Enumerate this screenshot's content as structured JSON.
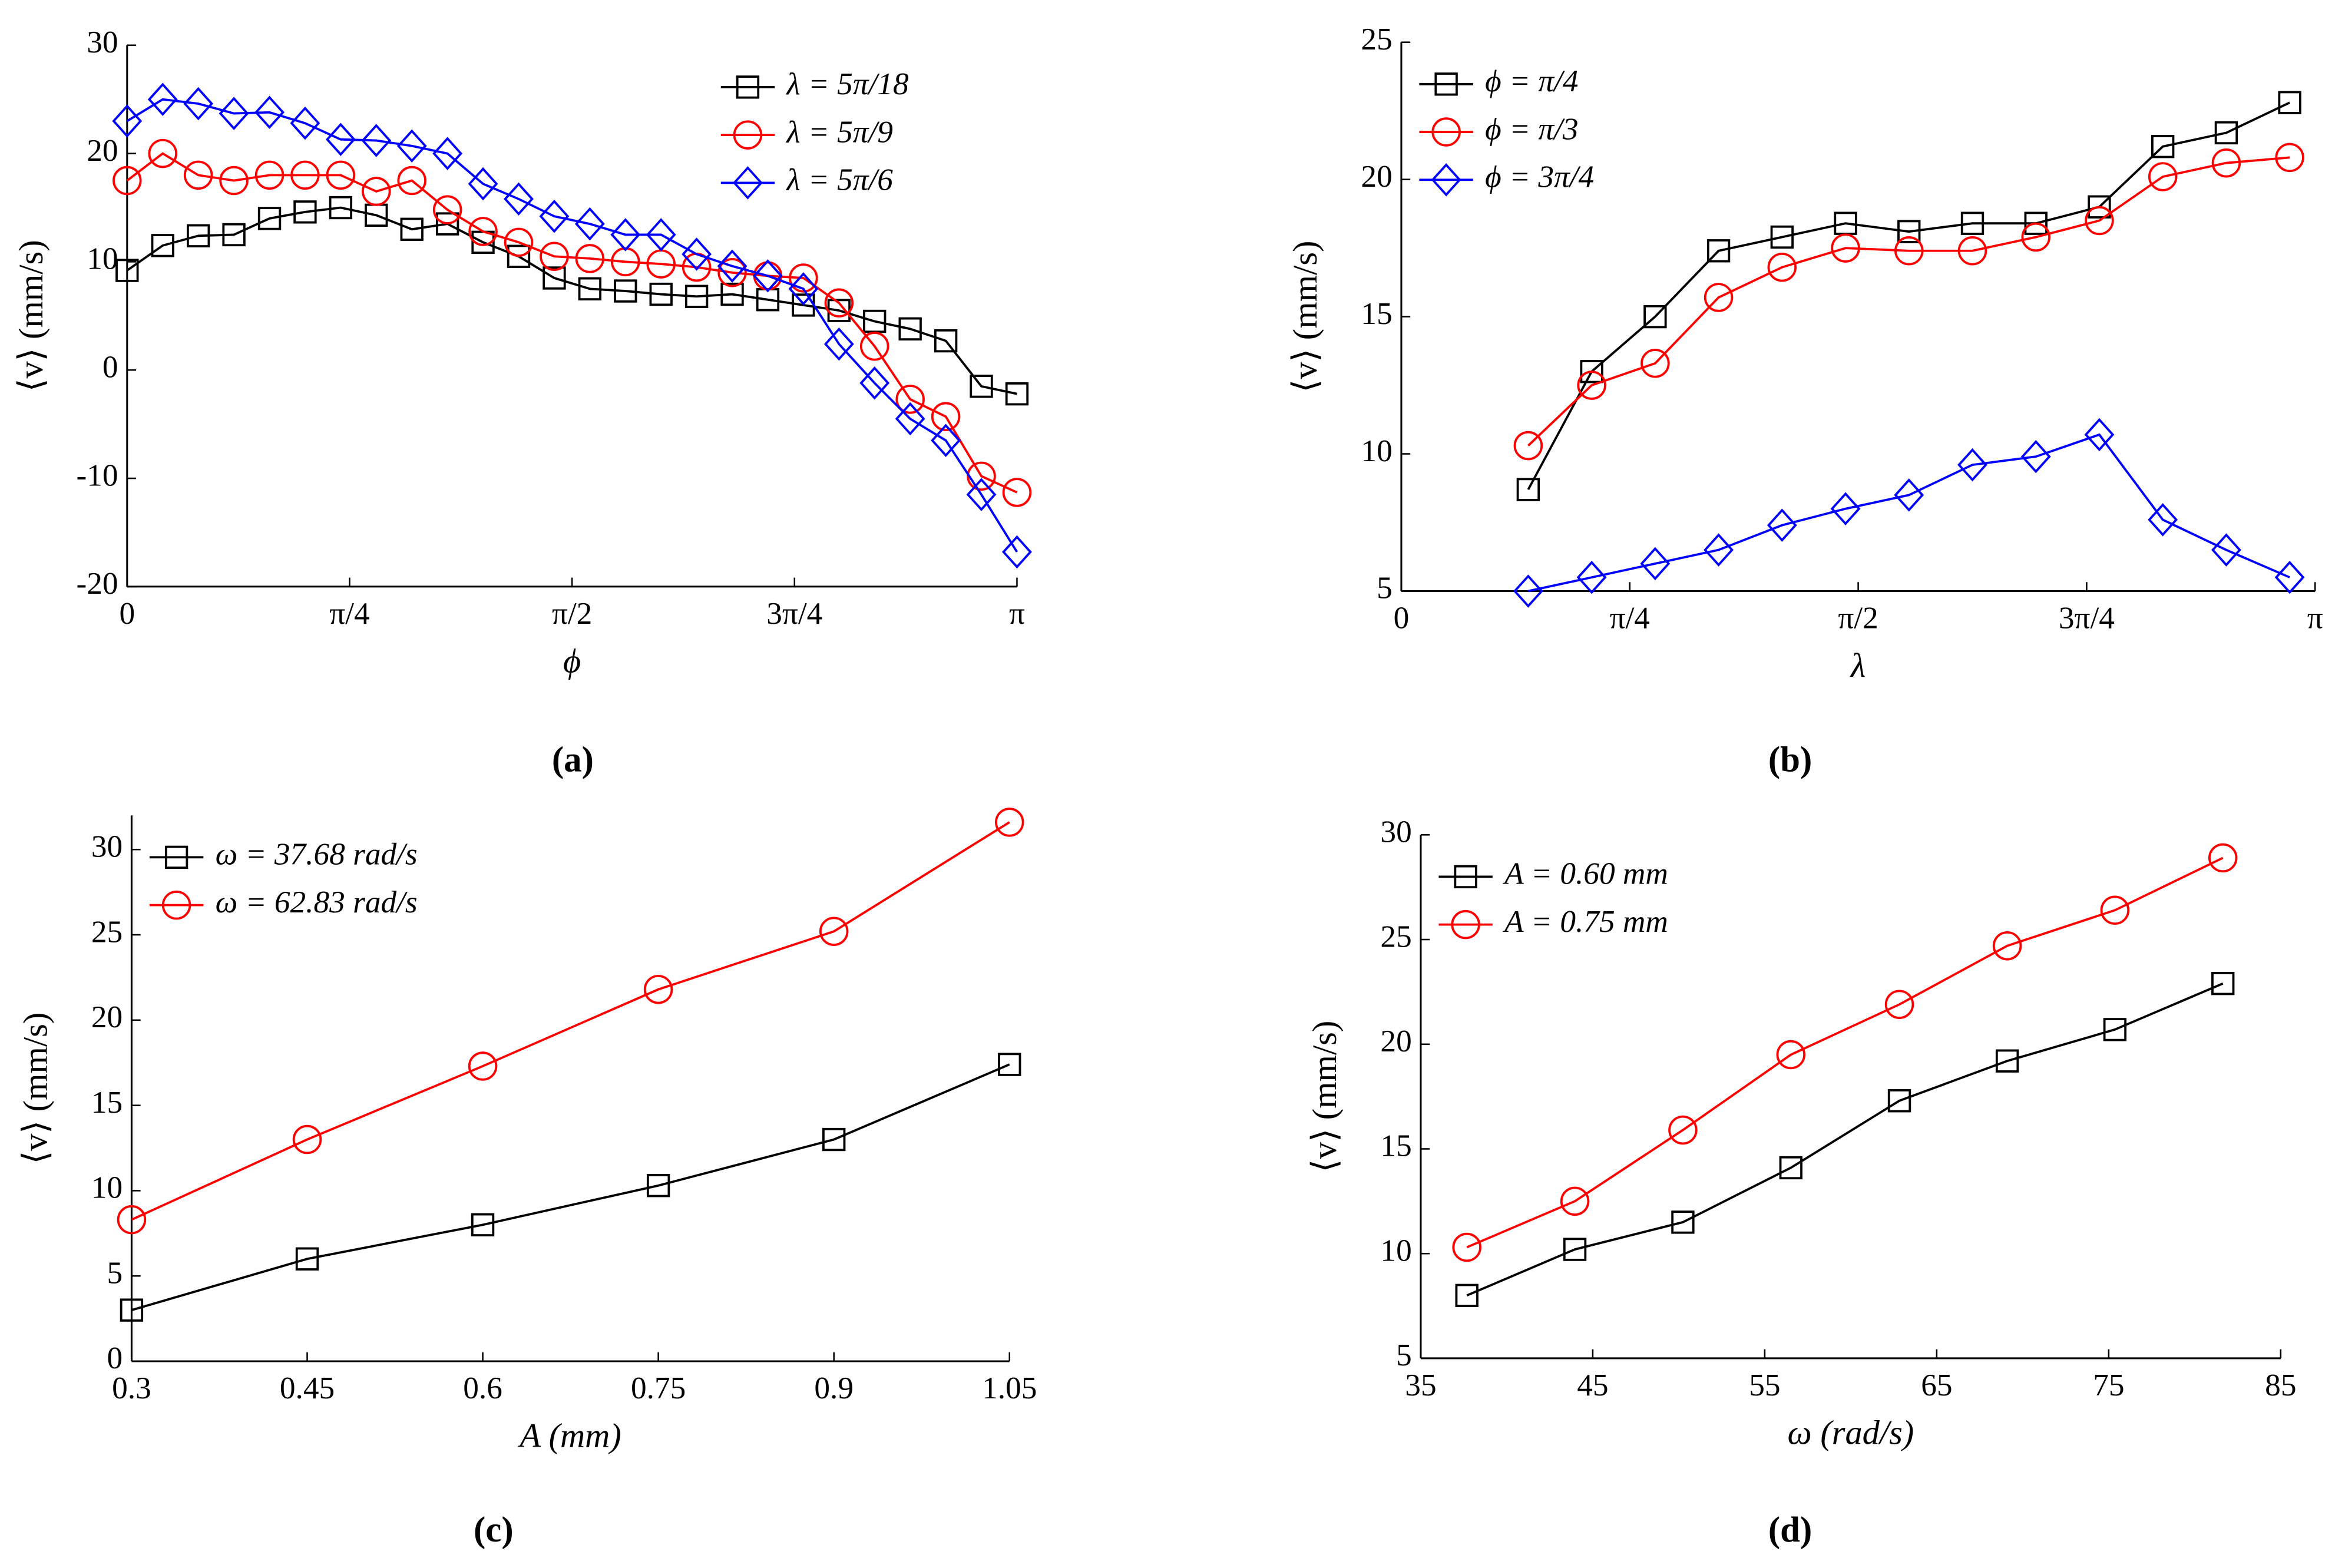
{
  "chart_data": [
    {
      "type": "line",
      "label": "(a)",
      "x_label": "ϕ",
      "y_label": "⟨v⟩ (mm/s)",
      "legend": "upper right",
      "x": [
        0,
        0.1257,
        0.2513,
        0.377,
        0.5027,
        0.6283,
        0.754,
        0.8796,
        1.0053,
        1.131,
        1.2566,
        1.3823,
        1.508,
        1.6336,
        1.7593,
        1.885,
        2.0106,
        2.1363,
        2.2619,
        2.3876,
        2.5133,
        2.6389,
        2.7646,
        2.8903,
        3.0159,
        3.1416
      ],
      "xlim": [
        0,
        3.1416
      ],
      "xticks": [
        0,
        {
          "value": 0.7854,
          "label": "π/4"
        },
        {
          "value": 1.5708,
          "label": "π/2"
        },
        {
          "value": 2.3562,
          "label": "3π/4"
        },
        {
          "value": 3.1416,
          "label": "π"
        }
      ],
      "ylim": [
        -20,
        30
      ],
      "yticks": [
        -20,
        -10,
        0,
        10,
        20,
        30
      ],
      "series": [
        {
          "name": "λ = 5π/18",
          "color": "#000000",
          "marker": "square",
          "values": [
            9.2,
            11.5,
            12.4,
            12.5,
            14,
            14.6,
            15,
            14.3,
            13,
            13.5,
            11.8,
            10.5,
            8.5,
            7.5,
            7.3,
            7,
            6.8,
            7,
            6.5,
            6,
            5.5,
            4.5,
            3.8,
            2.7,
            -1.5,
            -2.2
          ]
        },
        {
          "name": "λ = 5π/9",
          "color": "#ff0000",
          "marker": "circle",
          "values": [
            17.5,
            20,
            18,
            17.5,
            18,
            18,
            18,
            16.5,
            17.5,
            14.8,
            12.8,
            11.8,
            10.5,
            10.3,
            10,
            9.8,
            9.5,
            9,
            8.7,
            8.5,
            6.2,
            2.2,
            -2.7,
            -4.3,
            -9.8,
            -11.3
          ]
        },
        {
          "name": "λ = 5π/6",
          "color": "#0000ff",
          "marker": "diamond",
          "values": [
            23,
            25,
            24.6,
            23.7,
            23.8,
            22.8,
            21.3,
            21.2,
            20.7,
            20,
            17.2,
            15.8,
            14.2,
            13.5,
            12.5,
            12.5,
            10.7,
            9.6,
            8.7,
            7.5,
            2.4,
            -1.2,
            -4.5,
            -6.5,
            -11.5,
            -16.8
          ]
        }
      ]
    },
    {
      "type": "line",
      "label": "(b)",
      "x_label": "λ",
      "y_label": "⟨v⟩ (mm/s)",
      "legend": "upper left",
      "x": [
        0.4363,
        0.6545,
        0.8727,
        1.0908,
        1.309,
        1.5272,
        1.7453,
        1.9635,
        2.1817,
        2.3998,
        2.618,
        2.8362,
        3.0543
      ],
      "xlim": [
        0,
        3.1416
      ],
      "xticks": [
        0,
        {
          "value": 0.7854,
          "label": "π/4"
        },
        {
          "value": 1.5708,
          "label": "π/2"
        },
        {
          "value": 2.3562,
          "label": "3π/4"
        },
        {
          "value": 3.1416,
          "label": "π"
        }
      ],
      "ylim": [
        5,
        25
      ],
      "yticks": [
        5,
        10,
        15,
        20,
        25
      ],
      "series": [
        {
          "name": "ϕ = π/4",
          "color": "#000000",
          "marker": "square",
          "values": [
            8.7,
            13,
            15,
            17.4,
            17.9,
            18.4,
            18.1,
            18.4,
            18.4,
            19,
            21.2,
            21.7,
            22.8
          ]
        },
        {
          "name": "ϕ = π/3",
          "color": "#ff0000",
          "marker": "circle",
          "values": [
            10.3,
            12.5,
            13.3,
            15.7,
            16.8,
            17.5,
            17.4,
            17.4,
            17.9,
            18.5,
            20.1,
            20.6,
            20.8
          ]
        },
        {
          "name": "ϕ = 3π/4",
          "color": "#0000ff",
          "marker": "diamond",
          "values": [
            5,
            5.5,
            6,
            6.5,
            7.4,
            8,
            8.5,
            9.6,
            9.9,
            10.7,
            7.6,
            6.5,
            5.5
          ]
        }
      ]
    },
    {
      "type": "line",
      "label": "(c)",
      "x_label": "A (mm)",
      "y_label": "⟨v⟩ (mm/s)",
      "legend": "upper left",
      "x": [
        0.3,
        0.45,
        0.6,
        0.75,
        0.9,
        1.05
      ],
      "xlim": [
        0.3,
        1.05
      ],
      "xticks": [
        0.3,
        0.45,
        0.6,
        0.75,
        0.9,
        1.05
      ],
      "ylim": [
        0,
        32
      ],
      "yticks": [
        0,
        5,
        10,
        15,
        20,
        25,
        30
      ],
      "series": [
        {
          "name": "ω = 37.68 rad/s",
          "color": "#000000",
          "marker": "square",
          "values": [
            3,
            6,
            8,
            10.3,
            13,
            17.4
          ]
        },
        {
          "name": "ω = 62.83 rad/s",
          "color": "#ff0000",
          "marker": "circle",
          "values": [
            8.3,
            13,
            17.3,
            21.8,
            25.2,
            31.6
          ]
        }
      ]
    },
    {
      "type": "line",
      "label": "(d)",
      "x_label": "ω (rad/s)",
      "y_label": "⟨v⟩ (mm/s)",
      "legend": "upper left",
      "x": [
        37.68,
        43.96,
        50.24,
        56.52,
        62.83,
        69.1,
        75.36,
        81.64
      ],
      "xlim": [
        35,
        85
      ],
      "xticks": [
        35,
        45,
        55,
        65,
        75,
        85
      ],
      "ylim": [
        5,
        30
      ],
      "yticks": [
        5,
        10,
        15,
        20,
        25,
        30
      ],
      "series": [
        {
          "name": "A = 0.60 mm",
          "color": "#000000",
          "marker": "square",
          "values": [
            8,
            10.2,
            11.5,
            14.1,
            17.3,
            19.2,
            20.7,
            22.9
          ]
        },
        {
          "name": "A = 0.75 mm",
          "color": "#ff0000",
          "marker": "circle",
          "values": [
            10.3,
            12.5,
            15.9,
            19.5,
            21.9,
            24.7,
            26.4,
            28.9
          ]
        }
      ]
    }
  ]
}
